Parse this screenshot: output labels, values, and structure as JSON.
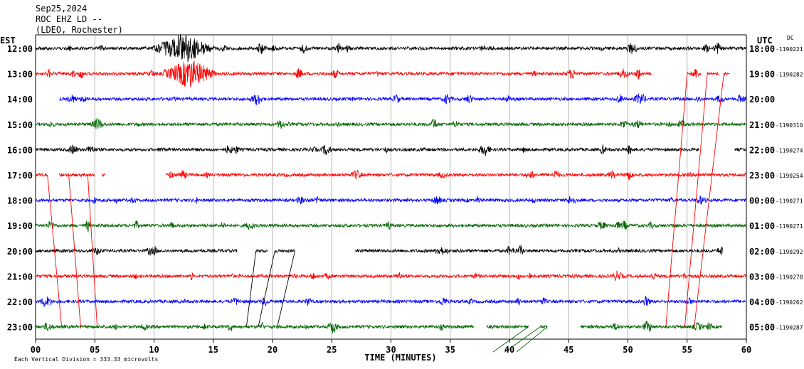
{
  "header": {
    "date": "Sep25,2024",
    "station": "ROC EHZ LD --",
    "network": "(LDEO, Rochester)"
  },
  "left_axis_label": "EST",
  "right_axis_label": "UTC",
  "dc_label": "DC",
  "footer_note": "Each Vertical Division =  333.33 microvolts",
  "colors": {
    "black": "#000000",
    "red": "#ff0000",
    "blue": "#0000ff",
    "green": "#006400",
    "grid": "#a0a0a0"
  },
  "chart_data": {
    "type": "line",
    "title": "",
    "xlabel": "TIME (MINUTES)",
    "xlim": [
      0,
      60
    ],
    "x_ticks": [
      0,
      5,
      10,
      15,
      20,
      25,
      30,
      35,
      40,
      45,
      50,
      55,
      60
    ],
    "x_tick_labels": [
      "00",
      "05",
      "10",
      "15",
      "20",
      "25",
      "30",
      "35",
      "40",
      "45",
      "50",
      "55",
      "60"
    ],
    "rows": [
      {
        "est": "12:00",
        "utc": "18:00",
        "dc": "-1190221",
        "color": "black",
        "segments": [
          [
            0,
            60
          ]
        ],
        "quakes": [
          [
            12.5,
            3.0
          ]
        ]
      },
      {
        "est": "13:00",
        "utc": "19:00",
        "dc": "-1190282",
        "color": "red",
        "segments": [
          [
            0,
            52
          ],
          [
            55.0,
            56.2
          ],
          [
            56.7,
            57.7
          ],
          [
            58.1,
            58.6
          ]
        ],
        "quakes": [
          [
            13.0,
            2.6
          ]
        ]
      },
      {
        "est": "14:00",
        "utc": "20:00",
        "dc": "",
        "color": "blue",
        "segments": [
          [
            2,
            60
          ]
        ],
        "quakes": []
      },
      {
        "est": "15:00",
        "utc": "21:00",
        "dc": "-1190310",
        "color": "green",
        "segments": [
          [
            0,
            60
          ]
        ],
        "quakes": []
      },
      {
        "est": "16:00",
        "utc": "22:00",
        "dc": "-1190274",
        "color": "black",
        "segments": [
          [
            0,
            56
          ],
          [
            59,
            60
          ]
        ],
        "quakes": []
      },
      {
        "est": "17:00",
        "utc": "23:00",
        "dc": "-1190254",
        "color": "red",
        "segments": [
          [
            0,
            1
          ],
          [
            2,
            5
          ],
          [
            5.6,
            5.9
          ],
          [
            11,
            60
          ]
        ],
        "quakes": []
      },
      {
        "est": "18:00",
        "utc": "00:00",
        "dc": "-1190271",
        "color": "blue",
        "segments": [
          [
            0,
            60
          ]
        ],
        "quakes": []
      },
      {
        "est": "19:00",
        "utc": "01:00",
        "dc": "-1190271",
        "color": "green",
        "segments": [
          [
            0,
            60
          ]
        ],
        "quakes": []
      },
      {
        "est": "20:00",
        "utc": "02:00",
        "dc": "-1190292",
        "color": "black",
        "segments": [
          [
            0,
            17
          ],
          [
            18.6,
            19.6
          ],
          [
            20.2,
            21.9
          ],
          [
            27,
            58
          ]
        ],
        "quakes": []
      },
      {
        "est": "21:00",
        "utc": "03:00",
        "dc": "-1190278",
        "color": "red",
        "segments": [
          [
            0,
            60
          ]
        ],
        "quakes": []
      },
      {
        "est": "22:00",
        "utc": "04:00",
        "dc": "-1190262",
        "color": "blue",
        "segments": [
          [
            0,
            60
          ]
        ],
        "quakes": []
      },
      {
        "est": "23:00",
        "utc": "05:00",
        "dc": "-1190287",
        "color": "green",
        "segments": [
          [
            0,
            37
          ],
          [
            38.1,
            41.6
          ],
          [
            42.6,
            43.2
          ],
          [
            46,
            58
          ]
        ],
        "quakes": []
      }
    ]
  }
}
